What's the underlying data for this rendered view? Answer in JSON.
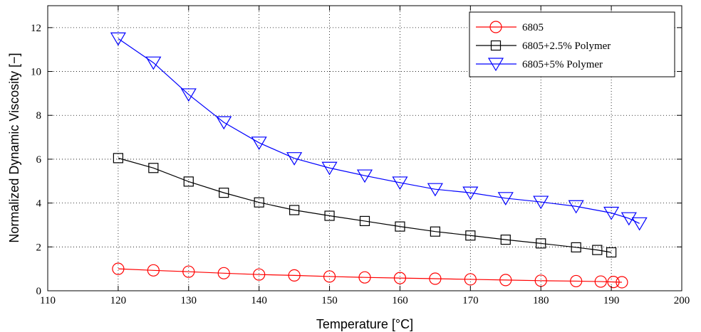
{
  "chart_data": {
    "type": "line",
    "title": "",
    "xlabel": "Temperature [°C]",
    "ylabel": "Normalized Dynamic Viscosity [−]",
    "xlim": [
      110,
      200
    ],
    "ylim": [
      0,
      13
    ],
    "x_ticks": [
      110,
      120,
      130,
      140,
      150,
      160,
      170,
      180,
      190,
      200
    ],
    "y_ticks": [
      0,
      2,
      4,
      6,
      8,
      10,
      12
    ],
    "grid": true,
    "grid_style": "dotted",
    "legend_position": "top-right",
    "series": [
      {
        "name": "6805",
        "color": "#ff0000",
        "marker": "circle",
        "x": [
          120,
          125,
          130,
          135,
          140,
          145,
          150,
          155,
          160,
          165,
          170,
          175,
          180,
          185,
          188.5,
          190.3,
          191.5
        ],
        "y": [
          1.0,
          0.93,
          0.87,
          0.8,
          0.74,
          0.7,
          0.65,
          0.61,
          0.58,
          0.55,
          0.52,
          0.49,
          0.46,
          0.44,
          0.42,
          0.4,
          0.39
        ]
      },
      {
        "name": "6805+2.5% Polymer",
        "color": "#000000",
        "marker": "square",
        "x": [
          120,
          125,
          130,
          135,
          140,
          145,
          150,
          155,
          160,
          165,
          170,
          175,
          180,
          185,
          188,
          190
        ],
        "y": [
          6.05,
          5.6,
          4.98,
          4.47,
          4.03,
          3.68,
          3.42,
          3.18,
          2.93,
          2.7,
          2.52,
          2.33,
          2.16,
          1.98,
          1.86,
          1.75
        ]
      },
      {
        "name": "6805+5% Polymer",
        "color": "#0000ff",
        "marker": "triangle-down",
        "x": [
          120,
          125,
          130,
          135,
          140,
          145,
          150,
          155,
          160,
          165,
          170,
          175,
          180,
          185,
          190,
          192.5,
          194
        ],
        "y": [
          11.5,
          10.4,
          8.95,
          7.68,
          6.75,
          6.04,
          5.6,
          5.25,
          4.93,
          4.63,
          4.47,
          4.22,
          4.05,
          3.85,
          3.55,
          3.3,
          3.07
        ]
      }
    ]
  }
}
